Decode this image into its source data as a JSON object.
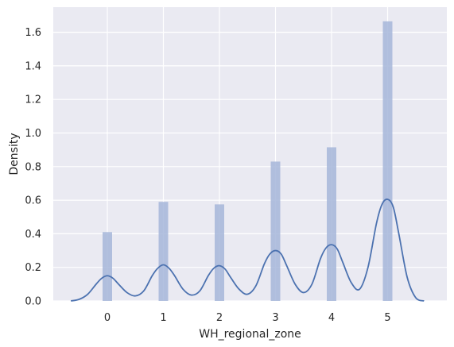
{
  "chart_data": {
    "type": "bar",
    "style": "seaborn-darkgrid distplot (histogram + KDE)",
    "xlabel": "WH_regional_zone",
    "ylabel": "Density",
    "xlim": [
      -0.75,
      5.75
    ],
    "ylim": [
      0,
      1.75
    ],
    "x_ticks": [
      0,
      1,
      2,
      3,
      4,
      5
    ],
    "y_ticks": [
      0.0,
      0.2,
      0.4,
      0.6,
      0.8,
      1.0,
      1.2,
      1.4,
      1.6
    ],
    "x_tick_labels": [
      "0",
      "1",
      "2",
      "3",
      "4",
      "5"
    ],
    "y_tick_labels": [
      "0.0",
      "0.2",
      "0.4",
      "0.6",
      "0.8",
      "1.0",
      "1.2",
      "1.4",
      "1.6"
    ],
    "grid": true,
    "background_color": "#EAEAF2",
    "bar_color": "#A6B6D9",
    "line_color": "#4C72B0",
    "histogram": {
      "categories": [
        0,
        1,
        2,
        3,
        4,
        5
      ],
      "values": [
        0.41,
        0.59,
        0.575,
        0.83,
        0.915,
        1.665
      ],
      "bar_width": 0.17
    },
    "kde": {
      "x": [
        -0.65,
        -0.5,
        -0.35,
        -0.2,
        -0.1,
        0.0,
        0.1,
        0.2,
        0.35,
        0.5,
        0.65,
        0.8,
        0.9,
        1.0,
        1.1,
        1.2,
        1.35,
        1.5,
        1.65,
        1.8,
        1.9,
        2.0,
        2.1,
        2.2,
        2.35,
        2.5,
        2.65,
        2.8,
        2.9,
        3.0,
        3.1,
        3.2,
        3.35,
        3.5,
        3.65,
        3.8,
        3.9,
        4.0,
        4.1,
        4.2,
        4.35,
        4.5,
        4.65,
        4.8,
        4.9,
        5.0,
        5.1,
        5.2,
        5.35,
        5.5,
        5.65
      ],
      "y": [
        0.0,
        0.01,
        0.04,
        0.1,
        0.135,
        0.15,
        0.135,
        0.1,
        0.05,
        0.03,
        0.06,
        0.15,
        0.195,
        0.215,
        0.195,
        0.15,
        0.07,
        0.035,
        0.06,
        0.15,
        0.195,
        0.21,
        0.19,
        0.14,
        0.07,
        0.04,
        0.09,
        0.22,
        0.28,
        0.3,
        0.28,
        0.21,
        0.1,
        0.05,
        0.1,
        0.25,
        0.315,
        0.335,
        0.31,
        0.23,
        0.11,
        0.07,
        0.2,
        0.46,
        0.575,
        0.605,
        0.56,
        0.4,
        0.14,
        0.02,
        0.0
      ]
    }
  }
}
